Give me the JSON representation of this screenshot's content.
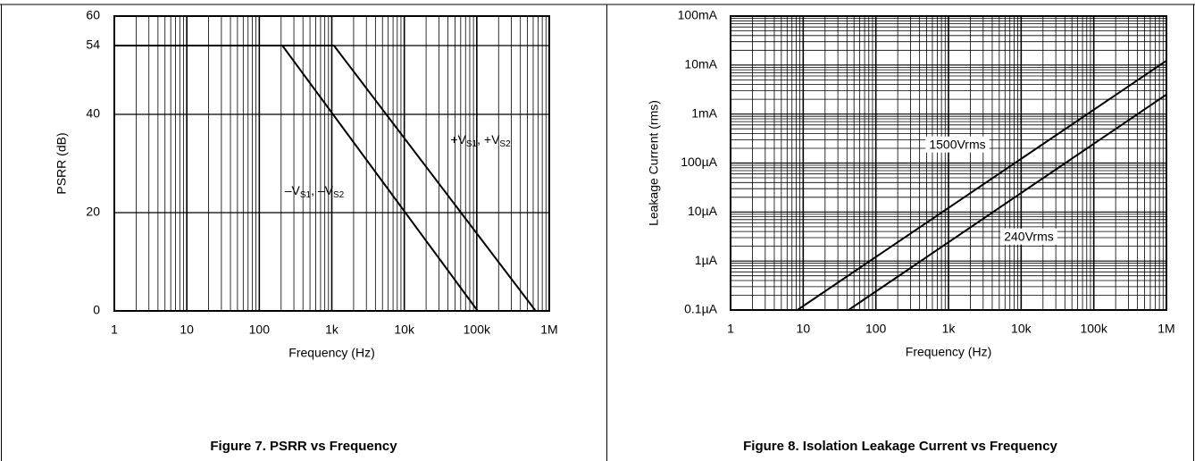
{
  "chart_data": [
    {
      "type": "line",
      "title": "Figure 7. PSRR vs Frequency",
      "xlabel": "Frequency (Hz)",
      "ylabel": "PSRR (dB)",
      "xscale": "log",
      "yscale": "linear",
      "xlim": [
        1,
        1000000
      ],
      "ylim": [
        0,
        60
      ],
      "xticks": [
        1,
        10,
        100,
        {
          "value": 1000,
          "label": "1k"
        },
        {
          "value": 10000,
          "label": "10k"
        },
        {
          "value": 100000,
          "label": "100k"
        },
        {
          "value": 1000000,
          "label": "1M"
        }
      ],
      "yticks": [
        0,
        20,
        40,
        54,
        60
      ],
      "grid": true,
      "minor_grid_axes": [
        "x"
      ],
      "series": [
        {
          "color": "#000000",
          "x": [
            1,
            1070,
            650000
          ],
          "y": [
            54,
            54,
            0
          ]
        },
        {
          "color": "#000000",
          "x": [
            1,
            208,
            103000
          ],
          "y": [
            54,
            54,
            0
          ]
        }
      ],
      "annotations": [
        {
          "parts": [
            "+V",
            "S1",
            ", +V",
            "S2"
          ]
        },
        {
          "parts": [
            "–V",
            "S1",
            ", –V",
            "S2"
          ]
        }
      ]
    },
    {
      "type": "line",
      "title": "Figure 8. Isolation Leakage Current vs Frequency",
      "xlabel": "Frequency (Hz)",
      "ylabel": "Leakage Current (rms)",
      "xscale": "log",
      "yscale": "log",
      "xlim": [
        1,
        1000000
      ],
      "ylim": [
        1e-07,
        0.1
      ],
      "xticks": [
        1,
        10,
        100,
        {
          "value": 1000,
          "label": "1k"
        },
        {
          "value": 10000,
          "label": "10k"
        },
        {
          "value": 100000,
          "label": "100k"
        },
        {
          "value": 1000000,
          "label": "1M"
        }
      ],
      "yticks": [
        {
          "value": 1e-07,
          "label": "0.1µA"
        },
        {
          "value": 1e-06,
          "label": "1µA"
        },
        {
          "value": 1e-05,
          "label": "10µA"
        },
        {
          "value": 0.0001,
          "label": "100µA"
        },
        {
          "value": 0.001,
          "label": "1mA"
        },
        {
          "value": 0.01,
          "label": "10mA"
        },
        {
          "value": 0.1,
          "label": "100mA"
        }
      ],
      "grid": true,
      "minor_grid_axes": [
        "x",
        "y"
      ],
      "series": [
        {
          "name": "1500Vrms",
          "color": "#000000",
          "x": [
            8.3,
            1000000
          ],
          "y": [
            1e-07,
            0.0123
          ]
        },
        {
          "name": "240Vrms",
          "color": "#000000",
          "x": [
            42,
            1000000
          ],
          "y": [
            1e-07,
            0.0025
          ]
        }
      ]
    }
  ]
}
